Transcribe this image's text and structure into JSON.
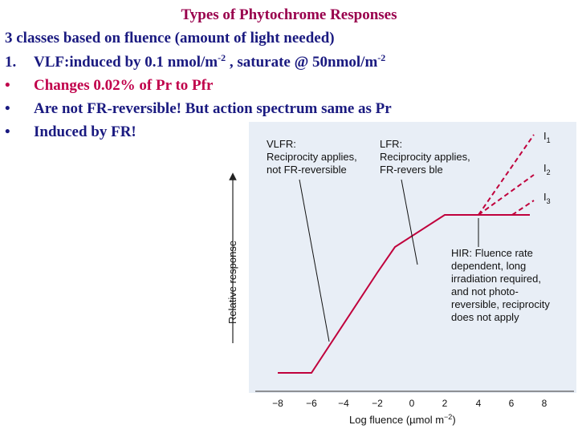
{
  "title": "Types of Phytochrome Responses",
  "lines": [
    {
      "num": "",
      "text": "3 classes based on fluence (amount of light needed)",
      "color": "blue"
    },
    {
      "num": "1.",
      "text": "VLF:induced by 0.1 nmol/m",
      "sup1": "-2",
      "mid": " , saturate @  50nmol/m",
      "sup2": "-2",
      "color": "blue"
    },
    {
      "num": "•",
      "text": "Changes 0.02% of Pr to Pfr",
      "color": "red"
    },
    {
      "num": "•",
      "text": "Are not FR-reversible! But action spectrum same as Pr",
      "color": "blue"
    },
    {
      "num": "•",
      "text": "Induced by FR!",
      "color": "blue"
    }
  ],
  "figure": {
    "vlfr_label": [
      "VLFR:",
      "Reciprocity applies,",
      "not FR-reversible"
    ],
    "lfr_label": [
      "LFR:",
      "Reciprocity applies,",
      "FR-revers ble"
    ],
    "hir_label": [
      "HIR: Fluence rate",
      "dependent, long",
      "irradiation required,",
      "and not photo-",
      "reversible, reciprocity",
      "does not apply"
    ],
    "curve_labels": [
      "I",
      "I",
      "I"
    ],
    "curve_subs": [
      "1",
      "2",
      "3"
    ],
    "y_axis_label": "Relative response",
    "x_axis_label": "Log fluence (µmol m",
    "x_axis_sup": "−2",
    "x_axis_close": ")",
    "x_ticks": [
      "−8",
      "−6",
      "−4",
      "−2",
      "0",
      "2",
      "4",
      "6",
      "8"
    ],
    "colors": {
      "curve": "#c0003c",
      "panel": "#e8eef6",
      "text": "#111111",
      "title": "#99004d",
      "blue": "#1a1a80",
      "red": "#c0004b"
    }
  }
}
